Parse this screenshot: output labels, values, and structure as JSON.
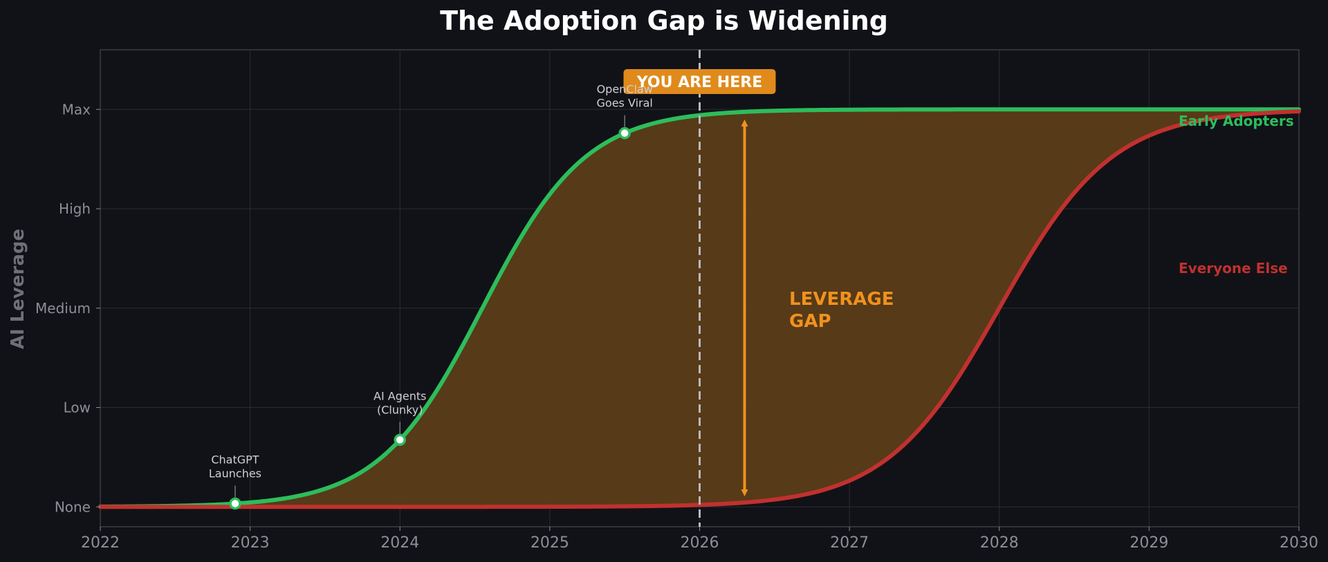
{
  "colors": {
    "background": "#111217",
    "plot_background": "#111217",
    "frame": "#3a3c44",
    "grid": "#2a2c33",
    "text_muted": "#8d8f96",
    "text_light": "#cfd0d4",
    "early": "#2dbd5b",
    "everyone": "#c0312f",
    "gap_fill": "#5c3d18",
    "accent": "#f0921e",
    "now_badge": "#e08a1c",
    "now_line": "#b9b9bd"
  },
  "chart_data": {
    "type": "line",
    "title": "The Adoption Gap is Widening",
    "xlabel": "",
    "ylabel": "AI Leverage",
    "xlim": [
      2022,
      2030
    ],
    "ylim": [
      -0.2,
      4.6
    ],
    "grid": true,
    "x_ticks": [
      2022,
      2023,
      2024,
      2025,
      2026,
      2027,
      2028,
      2029,
      2030
    ],
    "x_tick_labels": [
      "2022",
      "2023",
      "2024",
      "2025",
      "2026",
      "2027",
      "2028",
      "2029",
      "2030"
    ],
    "y_ticks": [
      0,
      1,
      2,
      3,
      4
    ],
    "y_tick_labels": [
      "None",
      "Low",
      "Medium",
      "High",
      "Max"
    ],
    "series": [
      {
        "name": "Early Adopters",
        "label": "Early Adopters",
        "color_key": "early",
        "curve": "logistic",
        "max": 4.0,
        "midpoint": 2024.55,
        "steepness": 2.9,
        "label_position": "right-top"
      },
      {
        "name": "Everyone Else",
        "label": "Everyone Else",
        "color_key": "everyone",
        "curve": "logistic",
        "max": 4.0,
        "midpoint": 2028.0,
        "steepness": 2.65,
        "label_position": "right-middle"
      }
    ],
    "gap_fill": true,
    "events": [
      {
        "name": "chatgpt",
        "x": 2022.9,
        "series_index": 0,
        "label_lines": [
          "ChatGPT",
          "Launches"
        ]
      },
      {
        "name": "ai-agents",
        "x": 2024.0,
        "series_index": 0,
        "label_lines": [
          "AI Agents",
          "(Clunky)"
        ]
      },
      {
        "name": "openclaw",
        "x": 2025.5,
        "series_index": 0,
        "label_lines": [
          "OpenClaw",
          "Goes Viral"
        ]
      }
    ],
    "now_marker": {
      "x": 2026.0,
      "label": "YOU ARE HERE"
    },
    "gap_annotation": {
      "x": 2026.3,
      "label_lines": [
        "LEVERAGE",
        "GAP"
      ]
    }
  }
}
